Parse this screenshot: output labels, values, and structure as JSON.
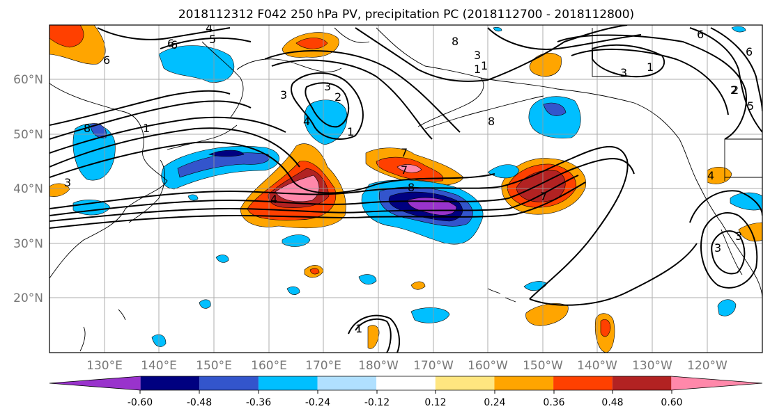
{
  "title": "2018112312 F042 250 hPa PV, precipitation PC (2018112700 - 2018112800)",
  "lat_labels": [
    "60°N",
    "50°N",
    "40°N",
    "30°N",
    "20°N"
  ],
  "lon_labels": [
    "130°E",
    "140°E",
    "150°E",
    "160°E",
    "170°E",
    "180°W",
    "170°W",
    "160°W",
    "150°W",
    "140°W",
    "130°W",
    "120°W"
  ],
  "colorbar": {
    "colors": [
      "#9933cc",
      "#000080",
      "#3355cc",
      "#00bfff",
      "#b0e0ff",
      "#ffffff",
      "#ffe680",
      "#ffa500",
      "#ff4000",
      "#b22222",
      "#ff88aa"
    ],
    "tick_labels": [
      "-0.60",
      "-0.48",
      "-0.36",
      "-0.24",
      "-0.12",
      "0.12",
      "0.24",
      "0.36",
      "0.48",
      "0.60"
    ]
  },
  "contour_labels": [
    "4",
    "5",
    "6",
    "6",
    "3",
    "2",
    "3",
    "1",
    "1",
    "1",
    "2",
    "3",
    "8",
    "7",
    "6",
    "5",
    "7",
    "4",
    "8",
    "8",
    "6",
    "8",
    "4",
    "3",
    "3",
    "2",
    "1",
    "6",
    "4",
    "3",
    "1",
    "1",
    "3",
    "7"
  ]
}
